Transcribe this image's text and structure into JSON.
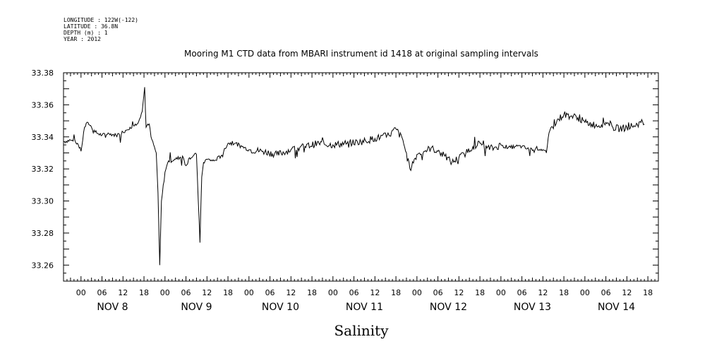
{
  "meta": [
    "LONGITUDE : 122W(-122)",
    "LATITUDE : 36.8N",
    "DEPTH (m) : 1",
    "YEAR : 2012"
  ],
  "chart_data": {
    "type": "line",
    "title": "Mooring M1 CTD data from MBARI instrument id 1418 at original sampling intervals",
    "xlabel": "Salinity",
    "ylabel": "",
    "ylim": [
      33.25,
      33.38
    ],
    "y_ticks": [
      "33.26",
      "33.28",
      "33.30",
      "33.32",
      "33.34",
      "33.36",
      "33.38"
    ],
    "xlim_hours": [
      -5,
      165
    ],
    "x_hour_labels": [
      "00",
      "06",
      "12",
      "18",
      "00",
      "06",
      "12",
      "18",
      "00",
      "06",
      "12",
      "18",
      "00",
      "06",
      "12",
      "18",
      "00",
      "06",
      "12",
      "18",
      "00",
      "06",
      "12",
      "18",
      "00",
      "06",
      "12",
      "18"
    ],
    "x_day_labels": [
      "NOV  8",
      "NOV  9",
      "NOV 10",
      "NOV 11",
      "NOV 12",
      "NOV 13",
      "NOV 14"
    ],
    "grid": false,
    "series": [
      {
        "color": "#000000",
        "points": [
          [
            -5,
            33.337
          ],
          [
            -3,
            33.338
          ],
          [
            -1,
            33.336
          ],
          [
            0,
            33.331
          ],
          [
            1,
            33.346
          ],
          [
            2,
            33.349
          ],
          [
            3,
            33.346
          ],
          [
            4,
            33.343
          ],
          [
            6,
            33.341
          ],
          [
            8,
            33.342
          ],
          [
            10,
            33.341
          ],
          [
            12,
            33.343
          ],
          [
            14,
            33.346
          ],
          [
            16,
            33.348
          ],
          [
            17.5,
            33.356
          ],
          [
            18.2,
            33.371
          ],
          [
            18.6,
            33.346
          ],
          [
            19.5,
            33.348
          ],
          [
            20,
            33.34
          ],
          [
            21.5,
            33.33
          ],
          [
            22,
            33.305
          ],
          [
            22.5,
            33.26
          ],
          [
            23,
            33.3
          ],
          [
            24,
            33.318
          ],
          [
            25,
            33.325
          ],
          [
            27,
            33.326
          ],
          [
            29,
            33.328
          ],
          [
            30,
            33.322
          ],
          [
            31,
            33.327
          ],
          [
            33,
            33.329
          ],
          [
            34,
            33.274
          ],
          [
            34.5,
            33.315
          ],
          [
            35,
            33.324
          ],
          [
            36,
            33.326
          ],
          [
            38,
            33.325
          ],
          [
            40,
            33.328
          ],
          [
            42,
            33.336
          ],
          [
            44,
            33.336
          ],
          [
            46,
            33.334
          ],
          [
            48,
            33.332
          ],
          [
            52,
            33.331
          ],
          [
            56,
            33.329
          ],
          [
            60,
            33.332
          ],
          [
            64,
            33.334
          ],
          [
            68,
            33.336
          ],
          [
            72,
            33.335
          ],
          [
            76,
            33.336
          ],
          [
            80,
            33.337
          ],
          [
            84,
            33.339
          ],
          [
            88,
            33.341
          ],
          [
            90,
            33.345
          ],
          [
            92,
            33.338
          ],
          [
            94,
            33.32
          ],
          [
            96,
            33.329
          ],
          [
            98,
            33.331
          ],
          [
            100,
            33.333
          ],
          [
            102,
            33.331
          ],
          [
            104,
            33.328
          ],
          [
            106,
            33.324
          ],
          [
            108,
            33.327
          ],
          [
            110,
            33.33
          ],
          [
            112,
            33.334
          ],
          [
            114,
            33.336
          ],
          [
            116,
            33.333
          ],
          [
            118,
            33.333
          ],
          [
            120,
            33.335
          ],
          [
            122,
            33.333
          ],
          [
            124,
            33.334
          ],
          [
            126,
            33.334
          ],
          [
            128,
            33.332
          ],
          [
            130,
            33.333
          ],
          [
            132,
            33.332
          ],
          [
            133,
            33.33
          ],
          [
            134,
            33.344
          ],
          [
            136,
            33.35
          ],
          [
            138,
            33.354
          ],
          [
            140,
            33.353
          ],
          [
            142,
            33.352
          ],
          [
            144,
            33.349
          ],
          [
            146,
            33.348
          ],
          [
            148,
            33.347
          ],
          [
            150,
            33.349
          ],
          [
            152,
            33.346
          ],
          [
            154,
            33.345
          ],
          [
            156,
            33.346
          ],
          [
            158,
            33.347
          ],
          [
            160,
            33.349
          ],
          [
            161,
            33.348
          ]
        ]
      }
    ]
  }
}
